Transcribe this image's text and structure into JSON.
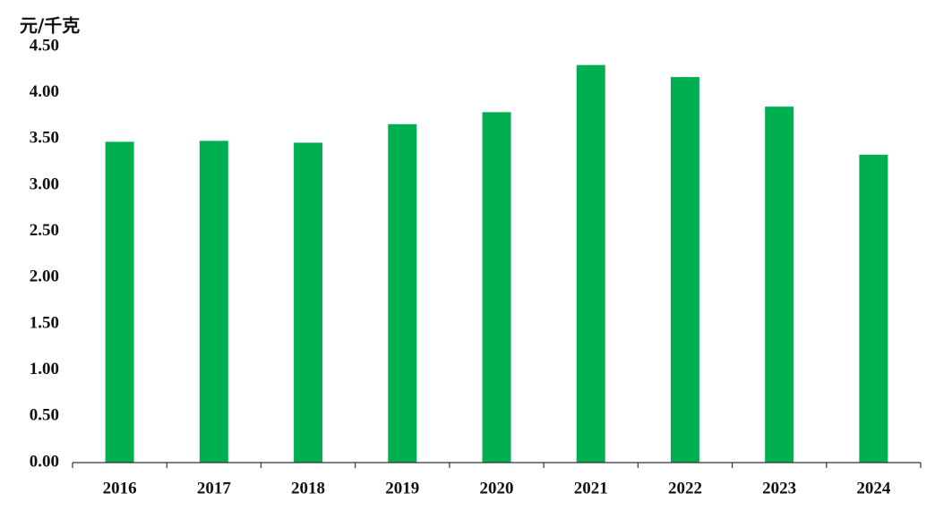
{
  "chart_data": {
    "type": "bar",
    "title": "元/千克",
    "categories": [
      "2016",
      "2017",
      "2018",
      "2019",
      "2020",
      "2021",
      "2022",
      "2023",
      "2024"
    ],
    "values": [
      3.47,
      3.48,
      3.46,
      3.66,
      3.79,
      4.3,
      4.17,
      3.85,
      3.33
    ],
    "color": "#00b050",
    "ylim": [
      0,
      4.5
    ],
    "yticks": [
      {
        "value": 0,
        "label": "0.00"
      },
      {
        "value": 0.5,
        "label": "0.50"
      },
      {
        "value": 1,
        "label": "1.00"
      },
      {
        "value": 1.5,
        "label": "1.50"
      },
      {
        "value": 2,
        "label": "2.00"
      },
      {
        "value": 2.5,
        "label": "2.50"
      },
      {
        "value": 3,
        "label": "3.00"
      },
      {
        "value": 3.5,
        "label": "3.50"
      },
      {
        "value": 4,
        "label": "4.00"
      },
      {
        "value": 4.5,
        "label": "4.50"
      }
    ],
    "grid": false
  }
}
